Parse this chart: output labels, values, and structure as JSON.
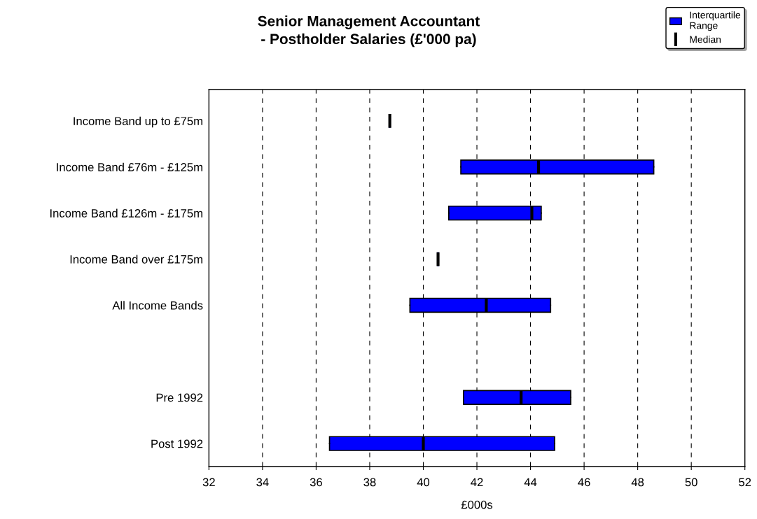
{
  "chart_data": {
    "type": "box",
    "orientation": "horizontal",
    "title": "Senior Management Accountant\n- Postholder Salaries (£'000 pa)",
    "xlabel": "£000s",
    "categories": [
      "Income Band up to £75m",
      "Income Band £76m - £125m",
      "Income Band £126m - £175m",
      "Income Band over £175m",
      "All Income Bands",
      null,
      "Pre 1992",
      "Post 1992"
    ],
    "series": [
      {
        "name": "Interquartile\nRange",
        "color": "#0000ff",
        "boxes": [
          {
            "low": 38.75,
            "q1": 38.75,
            "median": 38.75,
            "q3": 38.75,
            "high": 38.75
          },
          {
            "low": 41.4,
            "q1": 41.4,
            "median": 44.3,
            "q3": 48.6,
            "high": 48.6
          },
          {
            "low": 40.95,
            "q1": 40.95,
            "median": 44.05,
            "q3": 44.4,
            "high": 44.4
          },
          {
            "low": 40.55,
            "q1": 40.55,
            "median": 40.55,
            "q3": 40.55,
            "high": 40.55
          },
          {
            "low": 39.5,
            "q1": 39.5,
            "median": 42.35,
            "q3": 44.75,
            "high": 44.75
          },
          null,
          {
            "low": 41.5,
            "q1": 41.5,
            "median": 43.65,
            "q3": 45.5,
            "high": 45.5
          },
          {
            "low": 36.5,
            "q1": 36.5,
            "median": 40.0,
            "q3": 44.9,
            "high": 44.9
          }
        ]
      }
    ],
    "annotations": [
      "Median"
    ],
    "xlim": [
      32,
      52
    ],
    "xticks": [
      32,
      34,
      36,
      38,
      40,
      42,
      44,
      46,
      48,
      50,
      52
    ],
    "grid": "x",
    "legend": "top right"
  }
}
